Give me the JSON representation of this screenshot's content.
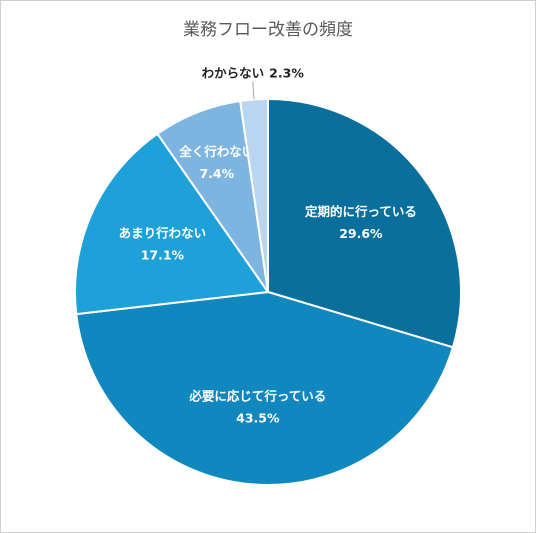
{
  "chart_data": {
    "type": "pie",
    "title": "業務フロー改善の頻度",
    "categories": [
      "定期的に行っている",
      "必要に応じて行っている",
      "あまり行わない",
      "全く行わない",
      "わからない"
    ],
    "values": [
      29.6,
      43.5,
      17.1,
      7.4,
      2.3
    ],
    "value_labels": [
      "29.6%",
      "43.5%",
      "17.1%",
      "7.4%",
      "2.3%"
    ],
    "colors": [
      "#0b6f9e",
      "#1187bf",
      "#1ea0d8",
      "#7db5e0",
      "#b9d5ef"
    ]
  }
}
